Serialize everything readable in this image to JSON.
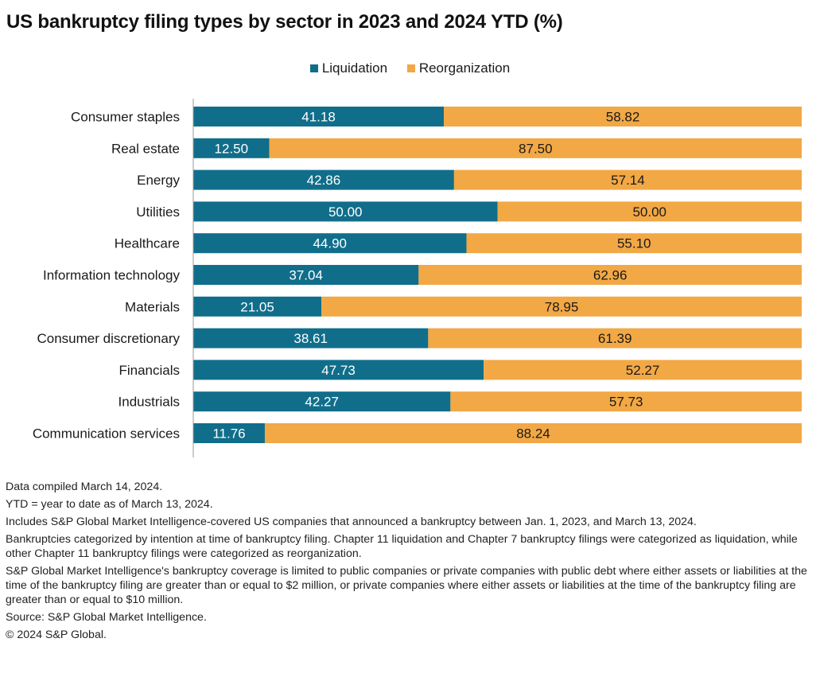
{
  "title": "US bankruptcy filing types by sector in 2023 and 2024 YTD (%)",
  "colors": {
    "liquidation": "#106e8b",
    "reorganization": "#f2a845",
    "axis": "#999999"
  },
  "legend": [
    {
      "label": "Liquidation",
      "color": "#106e8b"
    },
    {
      "label": "Reorganization",
      "color": "#f2a845"
    }
  ],
  "chart_data": {
    "type": "bar",
    "orientation": "horizontal",
    "stacked": true,
    "categories": [
      "Consumer staples",
      "Real estate",
      "Energy",
      "Utilities",
      "Healthcare",
      "Information technology",
      "Materials",
      "Consumer discretionary",
      "Financials",
      "Industrials",
      "Communication services"
    ],
    "series": [
      {
        "name": "Liquidation",
        "values": [
          41.18,
          12.5,
          42.86,
          50.0,
          44.9,
          37.04,
          21.05,
          38.61,
          47.73,
          42.27,
          11.76
        ]
      },
      {
        "name": "Reorganization",
        "values": [
          58.82,
          87.5,
          57.14,
          50.0,
          55.1,
          62.96,
          78.95,
          61.39,
          52.27,
          57.73,
          88.24
        ]
      }
    ],
    "xlim": [
      0,
      100
    ],
    "grid": false,
    "legend_position": "top",
    "title": "US bankruptcy filing types by sector in 2023 and 2024 YTD (%)"
  },
  "notes": [
    "Data compiled March 14, 2024.",
    "YTD = year to date as of March 13, 2024.",
    "Includes S&P Global Market Intelligence-covered US companies that announced a bankruptcy between Jan. 1, 2023, and March 13, 2024.",
    "Bankruptcies categorized by intention at time of bankruptcy filing. Chapter 11 liquidation and Chapter 7 bankruptcy filings were categorized as liquidation, while other Chapter 11 bankruptcy filings were categorized as reorganization.",
    "S&P Global Market Intelligence's bankruptcy coverage is limited to public companies or private companies with public debt where either assets or liabilities at the time of the bankruptcy filing are greater than or equal to $2 million, or private companies where either assets or liabilities at the time of the bankruptcy filing are greater than or equal to $10 million.",
    "Source: S&P Global Market Intelligence.",
    "© 2024 S&P Global."
  ]
}
